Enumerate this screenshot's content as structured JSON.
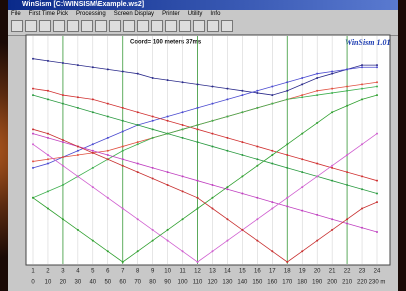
{
  "window": {
    "title": "WinSism [C:\\WINSISM\\Example.ws2]"
  },
  "menu": [
    "File",
    "First Time Pick",
    "Processing",
    "Screen Display",
    "Printer",
    "Utility",
    "Info"
  ],
  "plot": {
    "header": "Coord= 100 meters 37ms",
    "logo": "WinSism 1.01",
    "geophones": [
      1,
      2,
      3,
      4,
      5,
      6,
      7,
      8,
      9,
      10,
      11,
      12,
      13,
      14,
      15,
      16,
      17,
      18,
      19,
      20,
      21,
      22,
      23,
      24
    ],
    "distances": [
      "0",
      "10",
      "20",
      "30",
      "40",
      "50",
      "60",
      "70",
      "80",
      "90",
      "100",
      "110",
      "120",
      "130",
      "140",
      "150",
      "160",
      "170",
      "180",
      "190",
      "200",
      "210",
      "220",
      "230 m"
    ],
    "ylim": [
      0,
      100
    ],
    "shots": [
      3,
      7,
      12,
      18,
      22
    ],
    "series": [
      {
        "color": "#2a2a8a",
        "values": [
          95,
          94,
          93,
          92,
          91,
          90,
          89,
          88,
          86,
          85,
          84,
          83,
          82,
          81,
          80,
          79,
          78,
          80,
          83,
          86,
          88,
          90,
          92,
          92
        ]
      },
      {
        "color": "#4a4ad0",
        "values": [
          44,
          46,
          49,
          52,
          55,
          58,
          61,
          64,
          66,
          68,
          70,
          72,
          74,
          76,
          78,
          80,
          82,
          84,
          86,
          88,
          89,
          90,
          91,
          91
        ]
      },
      {
        "color": "#d03030",
        "values": [
          81,
          80,
          78,
          77,
          76,
          74,
          72,
          70,
          68,
          66,
          64,
          62,
          60,
          58,
          56,
          54,
          52,
          50,
          48,
          46,
          44,
          42,
          40,
          38
        ]
      },
      {
        "color": "#e05040",
        "values": [
          47,
          48,
          49,
          50,
          51,
          52,
          54,
          56,
          58,
          60,
          62,
          64,
          66,
          68,
          70,
          72,
          74,
          76,
          78,
          80,
          81,
          82,
          83,
          84
        ]
      },
      {
        "color": "#2a9a40",
        "values": [
          78,
          76,
          74,
          72,
          70,
          68,
          66,
          64,
          62,
          60,
          58,
          56,
          54,
          52,
          50,
          48,
          46,
          44,
          42,
          40,
          38,
          36,
          34,
          32
        ]
      },
      {
        "color": "#40b050",
        "values": [
          30,
          33,
          36,
          40,
          44,
          48,
          52,
          55,
          58,
          60,
          62,
          64,
          66,
          68,
          70,
          72,
          74,
          76,
          77,
          78,
          79,
          80,
          81,
          82
        ]
      },
      {
        "color": "#c040c0",
        "values": [
          60,
          58,
          56,
          54,
          52,
          50,
          48,
          46,
          44,
          42,
          40,
          38,
          36,
          34,
          32,
          30,
          28,
          26,
          24,
          22,
          20,
          18,
          16,
          14
        ]
      },
      {
        "color": "#d060d0",
        "values": [
          55,
          50,
          45,
          40,
          35,
          30,
          25,
          20,
          15,
          10,
          5,
          0,
          5,
          10,
          15,
          20,
          25,
          30,
          35,
          40,
          45,
          50,
          55,
          60
        ]
      },
      {
        "color": "#30a030",
        "values": [
          30,
          25,
          20,
          15,
          10,
          5,
          0,
          5,
          10,
          15,
          20,
          25,
          30,
          35,
          40,
          45,
          50,
          55,
          60,
          65,
          70,
          73,
          76,
          78
        ]
      },
      {
        "color": "#c83030",
        "values": [
          62,
          60,
          57,
          54,
          51,
          48,
          45,
          42,
          39,
          36,
          33,
          30,
          25,
          20,
          15,
          10,
          5,
          0,
          5,
          10,
          15,
          20,
          25,
          28
        ]
      }
    ]
  }
}
